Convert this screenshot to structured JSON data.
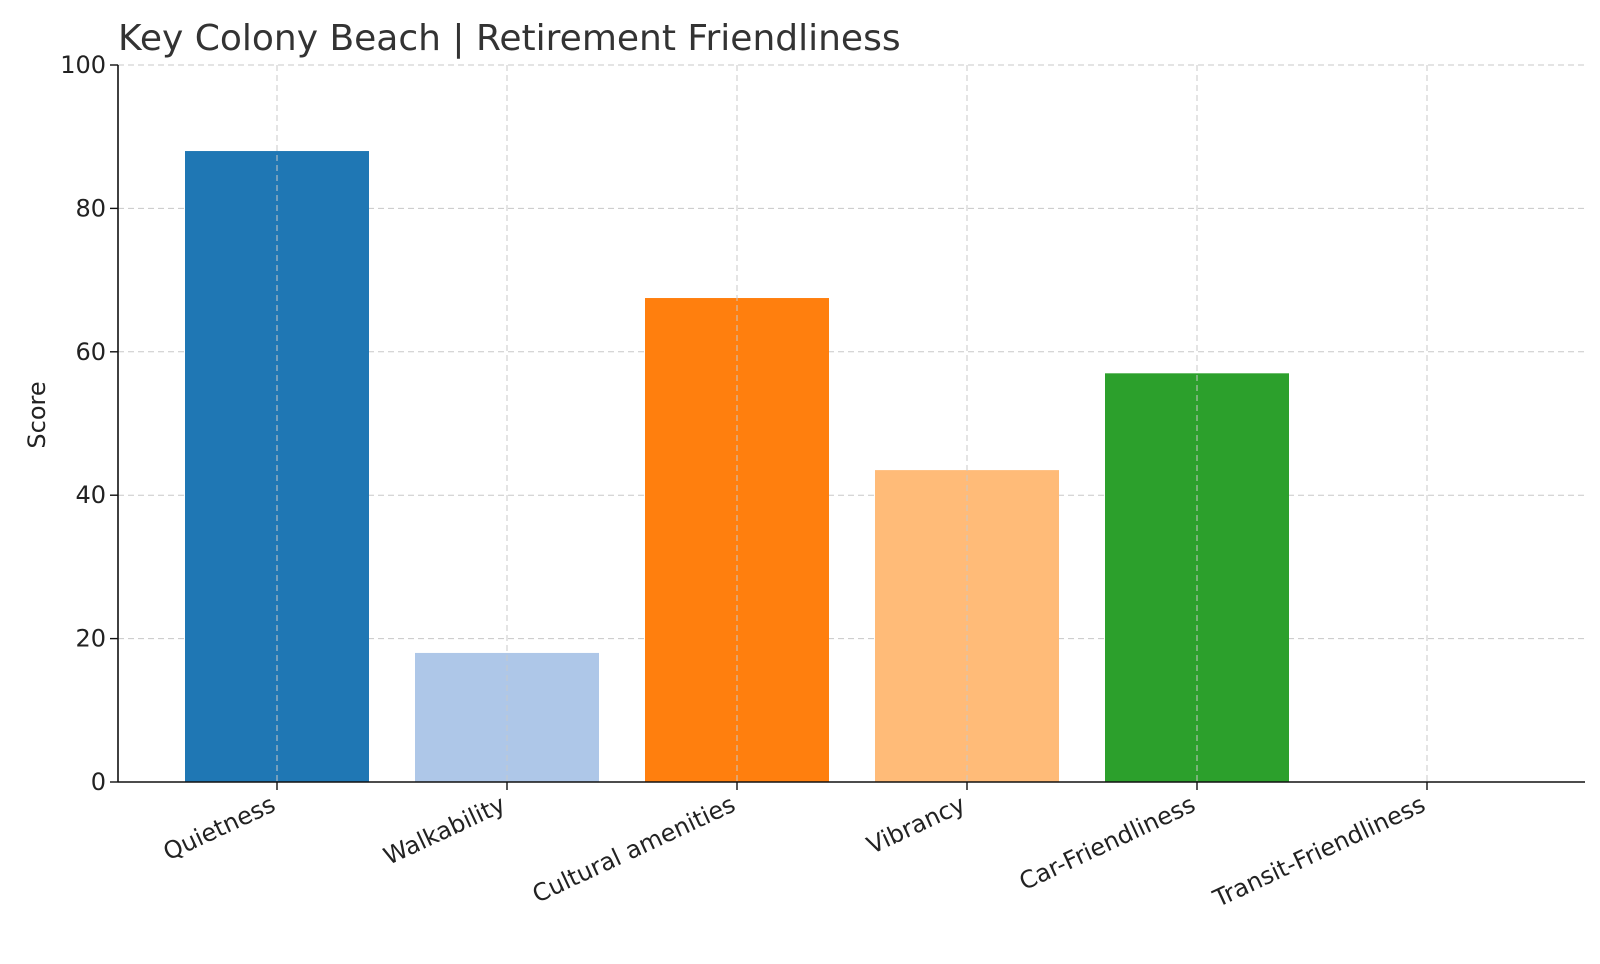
{
  "chart_data": {
    "type": "bar",
    "title": "Key Colony Beach | Retirement Friendliness",
    "xlabel": "",
    "ylabel": "Score",
    "ylim": [
      0,
      100
    ],
    "yticks": [
      "0",
      "20",
      "40",
      "60",
      "80",
      "100"
    ],
    "categories": [
      "Quietness",
      "Walkability",
      "Cultural amenities",
      "Vibrancy",
      "Car-Friendliness",
      "Transit-Friendliness"
    ],
    "values": [
      88,
      18,
      67.5,
      43.5,
      57,
      0
    ],
    "colors": [
      "#1f77b4",
      "#aec7e8",
      "#ff7f0e",
      "#ffbb78",
      "#2ca02c",
      "#98df8a"
    ],
    "grid": true,
    "legend": "none"
  }
}
